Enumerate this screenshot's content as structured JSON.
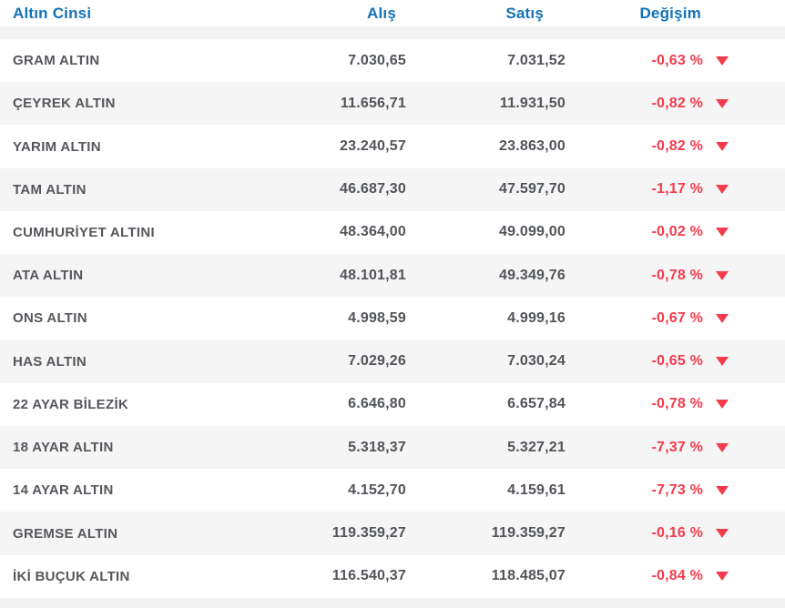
{
  "colors": {
    "header_blue": "#1273b8",
    "change_red": "#f43b4c",
    "row_stripe": "#f5f5f6",
    "label_gray": "#55575c",
    "number_gray": "#515459"
  },
  "table": {
    "headers": {
      "type": "Altın Cinsi",
      "buy": "Alış",
      "sell": "Satış",
      "change": "Değişim"
    },
    "down_icon": "▼",
    "rows": [
      {
        "name": "GRAM ALTIN",
        "buy": "7.030,65",
        "sell": "7.031,52",
        "change": "-0,63 %",
        "direction": "down"
      },
      {
        "name": "ÇEYREK ALTIN",
        "buy": "11.656,71",
        "sell": "11.931,50",
        "change": "-0,82 %",
        "direction": "down"
      },
      {
        "name": "YARIM ALTIN",
        "buy": "23.240,57",
        "sell": "23.863,00",
        "change": "-0,82 %",
        "direction": "down"
      },
      {
        "name": "TAM ALTIN",
        "buy": "46.687,30",
        "sell": "47.597,70",
        "change": "-1,17 %",
        "direction": "down"
      },
      {
        "name": "CUMHURİYET ALTINI",
        "buy": "48.364,00",
        "sell": "49.099,00",
        "change": "-0,02 %",
        "direction": "down"
      },
      {
        "name": "ATA ALTIN",
        "buy": "48.101,81",
        "sell": "49.349,76",
        "change": "-0,78 %",
        "direction": "down"
      },
      {
        "name": "ONS ALTIN",
        "buy": "4.998,59",
        "sell": "4.999,16",
        "change": "-0,67 %",
        "direction": "down"
      },
      {
        "name": "HAS ALTIN",
        "buy": "7.029,26",
        "sell": "7.030,24",
        "change": "-0,65 %",
        "direction": "down"
      },
      {
        "name": "22 AYAR BİLEZİK",
        "buy": "6.646,80",
        "sell": "6.657,84",
        "change": "-0,78 %",
        "direction": "down"
      },
      {
        "name": "18 AYAR ALTIN",
        "buy": "5.318,37",
        "sell": "5.327,21",
        "change": "-7,37 %",
        "direction": "down"
      },
      {
        "name": "14 AYAR ALTIN",
        "buy": "4.152,70",
        "sell": "4.159,61",
        "change": "-7,73 %",
        "direction": "down"
      },
      {
        "name": "GREMSE ALTIN",
        "buy": "119.359,27",
        "sell": "119.359,27",
        "change": "-0,16 %",
        "direction": "down"
      },
      {
        "name": "İKİ BUÇUK ALTIN",
        "buy": "116.540,37",
        "sell": "118.485,07",
        "change": "-0,84 %",
        "direction": "down"
      }
    ]
  }
}
